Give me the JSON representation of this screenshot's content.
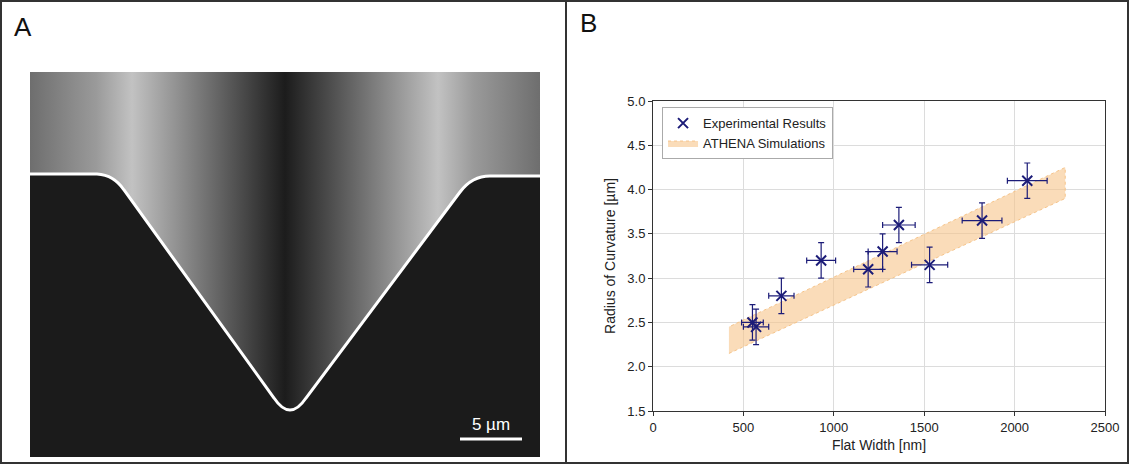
{
  "panel_a": {
    "letter": "A",
    "scale_bar": "5 µm"
  },
  "panel_b": {
    "letter": "B"
  },
  "chart_data": {
    "type": "scatter",
    "x_label": "Flat Width [nm]",
    "y_label": "Radius of Curvature [µm]",
    "xlim": [
      0,
      2500
    ],
    "xticks": [
      0,
      500,
      1000,
      1500,
      2000,
      2500
    ],
    "ylim": [
      1.5,
      5.0
    ],
    "yticks": [
      1.5,
      {
        "value": 2,
        "label": "2.0"
      },
      2.5,
      {
        "value": 3,
        "label": "3.0"
      },
      3.5,
      {
        "value": 4,
        "label": "4.0"
      },
      4.5,
      {
        "value": 5,
        "label": "5.0"
      }
    ],
    "grid": true,
    "legend": "upper left",
    "series": [
      {
        "name": "Experimental Results",
        "type": "scatter",
        "marker": "x",
        "color": "#1c1c78",
        "x": [
          550,
          570,
          710,
          930,
          1190,
          1270,
          1360,
          1530,
          1820,
          2070
        ],
        "values": [
          2.5,
          2.45,
          2.8,
          3.2,
          3.1,
          3.3,
          3.6,
          3.15,
          3.65,
          4.1
        ],
        "x_error": [
          60,
          70,
          70,
          80,
          80,
          80,
          90,
          100,
          110,
          110
        ],
        "y_error": [
          0.2,
          0.2,
          0.2,
          0.2,
          0.2,
          0.2,
          0.2,
          0.2,
          0.2,
          0.2
        ]
      },
      {
        "name": "ATHENA Simulations",
        "type": "area",
        "color": "#f6c48a",
        "line_style": "dotted",
        "x": [
          420,
          2280
        ],
        "lower": [
          2.15,
          3.9
        ],
        "upper": [
          2.45,
          4.25
        ]
      }
    ]
  }
}
